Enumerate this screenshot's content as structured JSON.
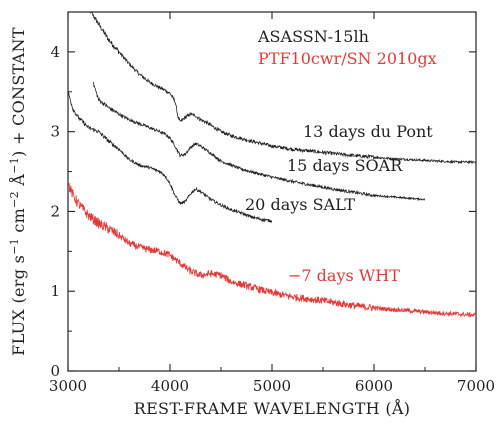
{
  "chart_data": {
    "type": "line",
    "xlabel": "REST-FRAME WAVELENGTH (Å)",
    "ylabel_parts": {
      "pre": "FLUX (erg s",
      "exp1": "−1",
      "mid1": " cm",
      "exp2": "−2",
      "mid2": " Å",
      "exp3": "−1",
      "post": ") + CONSTANT"
    },
    "xlim": [
      3000,
      7000
    ],
    "ylim": [
      0,
      4.5
    ],
    "xticks": [
      3000,
      4000,
      5000,
      6000,
      7000
    ],
    "yticks": [
      0,
      1,
      2,
      3,
      4
    ],
    "grid": false,
    "legend": {
      "placement": "top-right",
      "entries": [
        {
          "label": "ASASSN-15lh",
          "color": "#222222"
        },
        {
          "label": "PTF10cwr/SN 2010gx",
          "color": "#e03a3a"
        }
      ]
    },
    "series": [
      {
        "annotation": "13 days du Pont",
        "color": "#222222",
        "noise": 0.022,
        "x": [
          3200,
          3300,
          3400,
          3500,
          3600,
          3700,
          3800,
          3900,
          3950,
          4000,
          4050,
          4080,
          4100,
          4150,
          4200,
          4250,
          4300,
          4350,
          4400,
          4500,
          4600,
          4800,
          5000,
          5200,
          5500,
          5800,
          6000,
          6200,
          6500,
          6800,
          7000
        ],
        "y": [
          4.55,
          4.35,
          4.15,
          4.0,
          3.85,
          3.72,
          3.62,
          3.55,
          3.52,
          3.48,
          3.38,
          3.18,
          3.12,
          3.18,
          3.22,
          3.2,
          3.15,
          3.12,
          3.08,
          3.0,
          2.95,
          2.88,
          2.82,
          2.78,
          2.74,
          2.7,
          2.68,
          2.66,
          2.64,
          2.62,
          2.62
        ]
      },
      {
        "annotation": "15 days SOAR",
        "color": "#222222",
        "noise": 0.018,
        "x": [
          3250,
          3300,
          3400,
          3500,
          3600,
          3700,
          3800,
          3900,
          3950,
          4000,
          4050,
          4100,
          4150,
          4200,
          4250,
          4300,
          4400,
          4500,
          4700,
          5000,
          5300,
          5600,
          6000,
          6300,
          6500
        ],
        "y": [
          3.6,
          3.4,
          3.3,
          3.22,
          3.15,
          3.1,
          3.05,
          3.0,
          2.97,
          2.92,
          2.82,
          2.7,
          2.72,
          2.8,
          2.85,
          2.82,
          2.73,
          2.63,
          2.53,
          2.43,
          2.35,
          2.28,
          2.2,
          2.17,
          2.15
        ]
      },
      {
        "annotation": "20 days SALT",
        "color": "#222222",
        "noise": 0.018,
        "x": [
          3000,
          3050,
          3100,
          3200,
          3300,
          3400,
          3500,
          3600,
          3700,
          3800,
          3900,
          3950,
          4000,
          4050,
          4100,
          4150,
          4200,
          4250,
          4300,
          4400,
          4500,
          4600,
          4700,
          4800,
          4900,
          5000
        ],
        "y": [
          3.5,
          3.28,
          3.18,
          3.05,
          3.0,
          2.88,
          2.78,
          2.65,
          2.58,
          2.55,
          2.5,
          2.45,
          2.35,
          2.2,
          2.1,
          2.12,
          2.22,
          2.28,
          2.25,
          2.15,
          2.08,
          2.02,
          1.98,
          1.93,
          1.9,
          1.88
        ]
      },
      {
        "annotation": "−7 days WHT",
        "color": "#e03a3a",
        "noise": 0.045,
        "x": [
          3000,
          3050,
          3100,
          3200,
          3300,
          3400,
          3500,
          3600,
          3700,
          3800,
          3900,
          4000,
          4100,
          4200,
          4300,
          4400,
          4500,
          4600,
          4800,
          5000,
          5200,
          5500,
          5800,
          6000,
          6300,
          6600,
          7000
        ],
        "y": [
          2.35,
          2.2,
          2.1,
          1.95,
          1.85,
          1.78,
          1.7,
          1.6,
          1.55,
          1.52,
          1.5,
          1.45,
          1.35,
          1.25,
          1.2,
          1.22,
          1.2,
          1.12,
          1.05,
          0.98,
          0.93,
          0.88,
          0.82,
          0.79,
          0.76,
          0.73,
          0.7
        ]
      }
    ]
  }
}
